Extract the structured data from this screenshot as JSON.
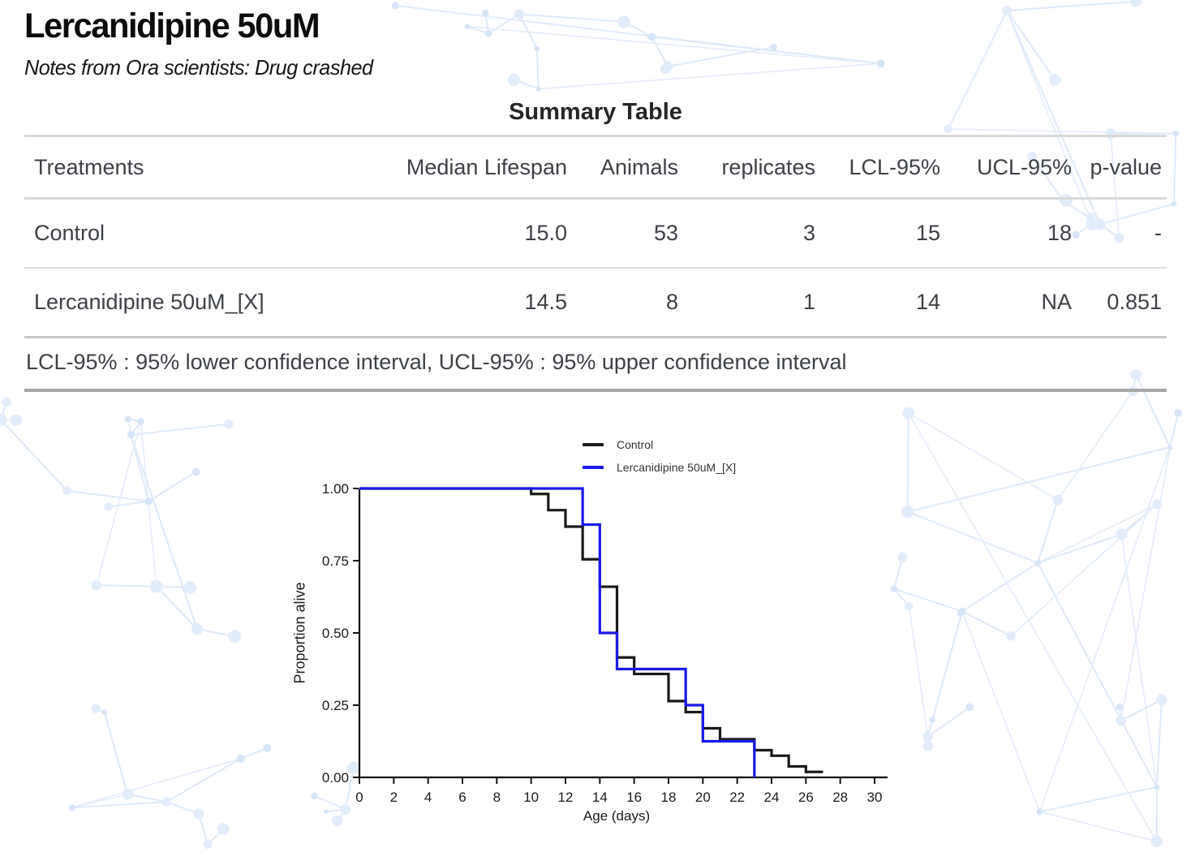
{
  "page": {
    "title": "Lercanidipine 50uM",
    "subtitle": "Notes from Ora scientists: Drug crashed"
  },
  "summary_table": {
    "title": "Summary Table",
    "columns": [
      "Treatments",
      "Median Lifespan",
      "Animals",
      "replicates",
      "LCL-95%",
      "UCL-95%",
      "p-value"
    ],
    "rows": [
      {
        "treatment": "Control",
        "median_lifespan": "15.0",
        "animals": "53",
        "replicates": "3",
        "lcl_95": "15",
        "ucl_95": "18",
        "p_value": "-"
      },
      {
        "treatment": "Lercanidipine 50uM_[X]",
        "median_lifespan": "14.5",
        "animals": "8",
        "replicates": "1",
        "lcl_95": "14",
        "ucl_95": "NA",
        "p_value": "0.851"
      }
    ],
    "footnote": "LCL-95% : 95% lower confidence interval, UCL-95% : 95% upper confidence interval"
  },
  "chart_data": {
    "type": "line",
    "subtype": "kaplan-meier-step",
    "title": "",
    "xlabel": "Age (days)",
    "ylabel": "Proportion alive",
    "xlim": [
      0,
      30
    ],
    "ylim": [
      0,
      1
    ],
    "grid": false,
    "legend_position": "top-center",
    "x_ticks": [
      0,
      2,
      4,
      6,
      8,
      10,
      12,
      14,
      16,
      18,
      20,
      22,
      24,
      26,
      28,
      30
    ],
    "y_ticks": [
      0,
      0.25,
      0.5,
      0.75,
      1
    ],
    "y_tick_labels": [
      "0.00",
      "0.25",
      "0.50",
      "0.75",
      "1.00"
    ],
    "series": [
      {
        "name": "Control",
        "color": "#1a1a1a",
        "points": [
          [
            0,
            1.0
          ],
          [
            10,
            0.981
          ],
          [
            11,
            0.925
          ],
          [
            12,
            0.868
          ],
          [
            13,
            0.755
          ],
          [
            14,
            0.66
          ],
          [
            15,
            0.415
          ],
          [
            16,
            0.358
          ],
          [
            18,
            0.264
          ],
          [
            19,
            0.226
          ],
          [
            20,
            0.17
          ],
          [
            21,
            0.132
          ],
          [
            23,
            0.094
          ],
          [
            24,
            0.075
          ],
          [
            25,
            0.038
          ],
          [
            26,
            0.019
          ],
          [
            27,
            0.019
          ]
        ]
      },
      {
        "name": "Lercanidipine 50uM_[X]",
        "color": "#1a1ae6",
        "points": [
          [
            0,
            1.0
          ],
          [
            13,
            0.875
          ],
          [
            14,
            0.5
          ],
          [
            15,
            0.375
          ],
          [
            19,
            0.25
          ],
          [
            20,
            0.125
          ],
          [
            23,
            0
          ]
        ]
      }
    ]
  }
}
